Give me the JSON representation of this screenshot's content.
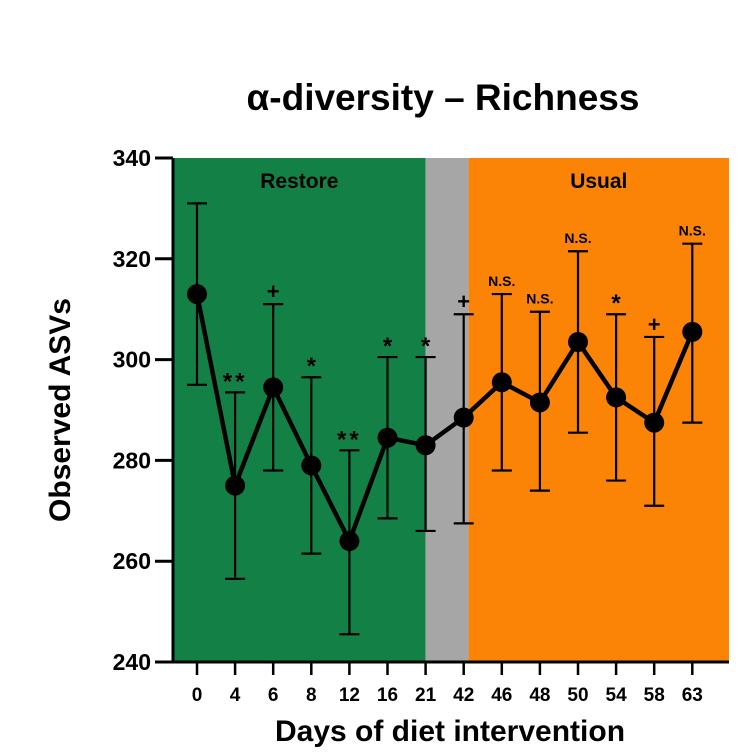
{
  "chart_data": {
    "type": "line",
    "title": "α-diversity – Richness",
    "xlabel": "Days of diet intervention",
    "ylabel": "Observed ASVs",
    "categories": [
      "0",
      "4",
      "6",
      "8",
      "12",
      "16",
      "21",
      "42",
      "46",
      "48",
      "50",
      "54",
      "58",
      "63"
    ],
    "ylim": [
      240,
      340
    ],
    "yticks": [
      240,
      260,
      280,
      300,
      320,
      340
    ],
    "series": [
      {
        "values": [
          313,
          275,
          294.5,
          279,
          264,
          284.5,
          283,
          288.5,
          295.5,
          291.5,
          303.5,
          292.5,
          287.5,
          305.5
        ],
        "error_upper": [
          331,
          293.5,
          311,
          296.5,
          282,
          300.5,
          300.5,
          309,
          313,
          309.5,
          321.5,
          309,
          304.5,
          323
        ],
        "error_lower": [
          295,
          256.5,
          278,
          261.5,
          245.5,
          268.5,
          266,
          267.5,
          278,
          274,
          285.5,
          276,
          271,
          287.5
        ],
        "color": "#000000"
      }
    ],
    "annotations": [
      "",
      "**",
      "+",
      "*",
      "**",
      "*",
      "*",
      "+",
      "N.S.",
      "N.S.",
      "N.S.",
      "*",
      "+",
      "N.S."
    ],
    "regions": [
      {
        "label": "Restore",
        "from": "0",
        "to": "21",
        "color": "#138046"
      },
      {
        "label": "",
        "from": "21",
        "to": "42",
        "color": "#a6a6a6"
      },
      {
        "label": "Usual",
        "from": "42",
        "to": "63",
        "color": "#fb8407"
      }
    ],
    "grid": false,
    "legend": "none"
  }
}
